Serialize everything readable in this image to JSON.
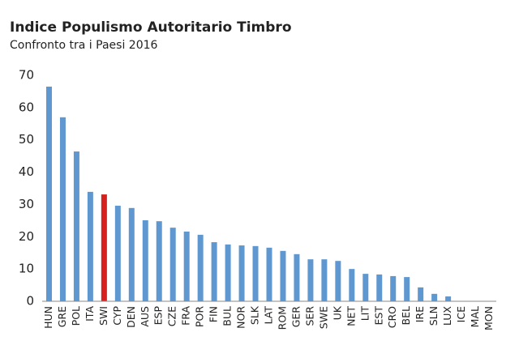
{
  "chart_data": {
    "type": "bar",
    "title": "Indice Populismo Autoritario Timbro",
    "subtitle": "Confronto tra i Paesi 2016",
    "categories": [
      "HUN",
      "GRE",
      "POL",
      "ITA",
      "SWI",
      "CYP",
      "DEN",
      "AUS",
      "ESP",
      "CZE",
      "FRA",
      "POR",
      "FIN",
      "BUL",
      "NOR",
      "SLK",
      "LAT",
      "ROM",
      "GER",
      "SER",
      "SWE",
      "UK",
      "NET",
      "LIT",
      "EST",
      "CRO",
      "BEL",
      "IRE",
      "SLN",
      "LUX",
      "ICE",
      "MAL",
      "MON"
    ],
    "values": [
      66.5,
      57,
      46.4,
      33.9,
      33.1,
      29.6,
      28.9,
      25.1,
      24.8,
      22.8,
      21.6,
      20.6,
      18.3,
      17.6,
      17.3,
      17.1,
      16.6,
      15.6,
      14.6,
      13.0,
      13.0,
      12.5,
      10.0,
      8.5,
      8.3,
      7.8,
      7.5,
      4.3,
      2.3,
      1.5,
      0,
      0,
      0
    ],
    "colors": [
      "#5f98d0",
      "#5f98d0",
      "#5f98d0",
      "#5f98d0",
      "#d7211f",
      "#5f98d0",
      "#5f98d0",
      "#5f98d0",
      "#5f98d0",
      "#5f98d0",
      "#5f98d0",
      "#5f98d0",
      "#5f98d0",
      "#5f98d0",
      "#5f98d0",
      "#5f98d0",
      "#5f98d0",
      "#5f98d0",
      "#5f98d0",
      "#5f98d0",
      "#5f98d0",
      "#5f98d0",
      "#5f98d0",
      "#5f98d0",
      "#5f98d0",
      "#5f98d0",
      "#5f98d0",
      "#5f98d0",
      "#5f98d0",
      "#5f98d0",
      "#5f98d0",
      "#5f98d0",
      "#5f98d0"
    ],
    "ylim": [
      0,
      70
    ],
    "yticks": [
      0,
      10,
      20,
      30,
      40,
      50,
      60,
      70
    ],
    "grid": false
  }
}
